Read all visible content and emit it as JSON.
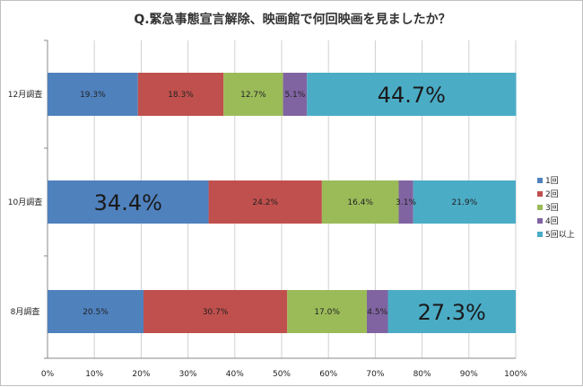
{
  "chart_data": {
    "type": "bar",
    "orientation": "horizontal",
    "stacked": true,
    "title": "Q.緊急事態宣言解除、映画館で何回映画を見ましたか？",
    "categories": [
      "12月調査",
      "10月調査",
      "8月調査"
    ],
    "series": [
      {
        "name": "1回",
        "color": "#4f81bd",
        "values": [
          19.3,
          34.4,
          20.5
        ],
        "labels": [
          "19.3%",
          "34.4%",
          "20.5%"
        ]
      },
      {
        "name": "2回",
        "color": "#c0504d",
        "values": [
          18.3,
          24.2,
          30.7
        ],
        "labels": [
          "18.3%",
          "24.2%",
          "30.7%"
        ]
      },
      {
        "name": "3回",
        "color": "#9bbb59",
        "values": [
          12.7,
          16.4,
          17.0
        ],
        "labels": [
          "12.7%",
          "16.4%",
          "17.0%"
        ]
      },
      {
        "name": "4回",
        "color": "#8064a2",
        "values": [
          5.1,
          3.1,
          4.5
        ],
        "labels": [
          "5.1%",
          "3.1%",
          "4.5%"
        ]
      },
      {
        "name": "5回以上",
        "color": "#4bacc6",
        "values": [
          44.7,
          21.9,
          27.3
        ],
        "labels": [
          "44.7%",
          "21.9%",
          "27.3%"
        ]
      }
    ],
    "highlight_labels": [
      [
        "12月調査",
        4
      ],
      [
        "10月調査",
        0
      ],
      [
        "8月調査",
        4
      ]
    ],
    "xlim": [
      0,
      100
    ],
    "xticks": [
      "0%",
      "10%",
      "20%",
      "30%",
      "40%",
      "50%",
      "60%",
      "70%",
      "80%",
      "90%",
      "100%"
    ],
    "grid": true,
    "legend_position": "right"
  }
}
